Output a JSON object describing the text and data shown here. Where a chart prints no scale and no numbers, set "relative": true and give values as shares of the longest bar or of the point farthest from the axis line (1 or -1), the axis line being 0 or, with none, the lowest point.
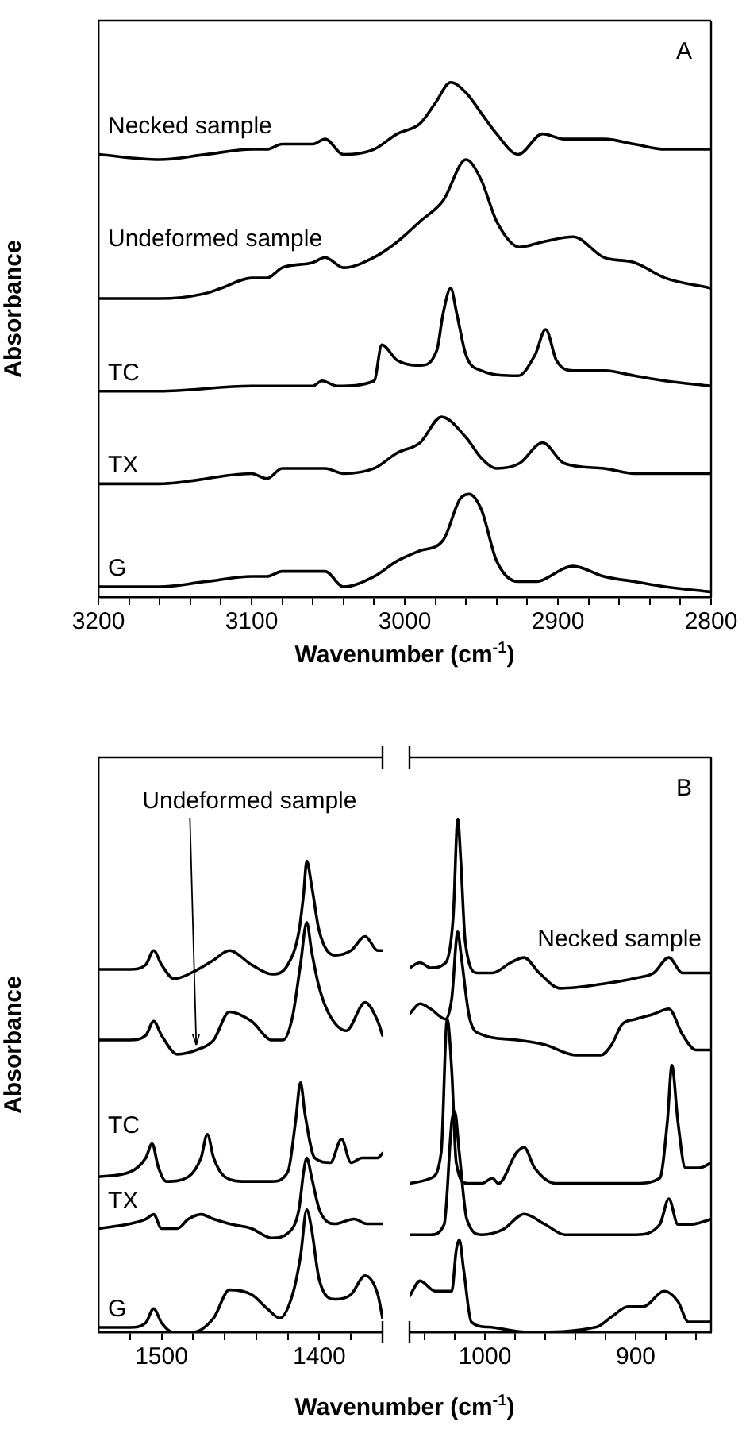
{
  "chart_data": [
    {
      "type": "line",
      "relative": true,
      "xlabel": "Wavenumber (cm$^{-1}$)",
      "ylabel": "Absorbance",
      "tick_labels": "x",
      "annotations": [
        "A"
      ],
      "xlim": [
        3200,
        2800
      ],
      "xticks": [
        3200,
        {
          "value": 3180,
          "label": null
        },
        {
          "value": 3160,
          "label": null
        },
        {
          "value": 3140,
          "label": null
        },
        {
          "value": 3120,
          "label": null
        },
        3100,
        {
          "value": 3080,
          "label": null
        },
        {
          "value": 3060,
          "label": null
        },
        {
          "value": 3040,
          "label": null
        },
        {
          "value": 3020,
          "label": null
        },
        3000,
        {
          "value": 2980,
          "label": null
        },
        {
          "value": 2960,
          "label": null
        },
        {
          "value": 2940,
          "label": null
        },
        {
          "value": 2920,
          "label": null
        },
        2900,
        {
          "value": 2880,
          "label": null
        },
        {
          "value": 2860,
          "label": null
        },
        {
          "value": 2840,
          "label": null
        },
        {
          "value": 2820,
          "label": null
        },
        2800
      ],
      "series": [
        {
          "name": "Necked sample",
          "color": "#000000",
          "x": [
            3200,
            3160,
            3130,
            3100,
            3090,
            3080,
            3060,
            3052,
            3040,
            3020,
            3005,
            2990,
            2980,
            2970,
            2960,
            2950,
            2940,
            2926,
            2910,
            2896,
            2870,
            2850,
            2830,
            2800
          ],
          "values": [
            0.86,
            0.85,
            0.86,
            0.87,
            0.87,
            0.88,
            0.88,
            0.89,
            0.86,
            0.87,
            0.9,
            0.92,
            0.96,
            1,
            0.98,
            0.94,
            0.9,
            0.86,
            0.9,
            0.89,
            0.89,
            0.88,
            0.87,
            0.87
          ]
        },
        {
          "name": "Undeformed sample",
          "color": "#000000",
          "x": [
            3200,
            3160,
            3130,
            3120,
            3100,
            3090,
            3080,
            3060,
            3052,
            3040,
            3020,
            3005,
            2990,
            2975,
            2960,
            2950,
            2940,
            2925,
            2910,
            2890,
            2870,
            2850,
            2830,
            2800
          ],
          "values": [
            0.58,
            0.58,
            0.59,
            0.6,
            0.62,
            0.62,
            0.64,
            0.65,
            0.66,
            0.64,
            0.66,
            0.69,
            0.73,
            0.77,
            0.85,
            0.81,
            0.73,
            0.68,
            0.69,
            0.7,
            0.66,
            0.65,
            0.62,
            0.6
          ]
        },
        {
          "name": "TC",
          "color": "#000000",
          "x": [
            3200,
            3160,
            3100,
            3060,
            3054,
            3044,
            3020,
            3015,
            3005,
            2990,
            2979,
            2975,
            2970,
            2966,
            2960,
            2950,
            2926,
            2915,
            2908,
            2901,
            2890,
            2870,
            2850,
            2830,
            2800
          ],
          "values": [
            0.4,
            0.4,
            0.41,
            0.41,
            0.42,
            0.41,
            0.42,
            0.49,
            0.46,
            0.45,
            0.48,
            0.55,
            0.6,
            0.55,
            0.47,
            0.44,
            0.43,
            0.47,
            0.52,
            0.46,
            0.44,
            0.44,
            0.43,
            0.42,
            0.41
          ]
        },
        {
          "name": "TX",
          "color": "#000000",
          "x": [
            3200,
            3160,
            3100,
            3090,
            3080,
            3060,
            3052,
            3040,
            3020,
            3005,
            2990,
            2976,
            2960,
            2950,
            2940,
            2925,
            2910,
            2896,
            2870,
            2850,
            2830,
            2800
          ],
          "values": [
            0.22,
            0.22,
            0.24,
            0.23,
            0.25,
            0.25,
            0.25,
            0.24,
            0.25,
            0.28,
            0.3,
            0.35,
            0.31,
            0.27,
            0.25,
            0.26,
            0.3,
            0.26,
            0.25,
            0.24,
            0.24,
            0.24
          ]
        },
        {
          "name": "G",
          "color": "#000000",
          "x": [
            3200,
            3160,
            3130,
            3100,
            3090,
            3080,
            3060,
            3052,
            3040,
            3020,
            3005,
            2990,
            2975,
            2964,
            2958,
            2950,
            2940,
            2926,
            2915,
            2890,
            2870,
            2850,
            2830,
            2800
          ],
          "values": [
            0.02,
            0.02,
            0.03,
            0.04,
            0.04,
            0.05,
            0.05,
            0.05,
            0.02,
            0.04,
            0.07,
            0.09,
            0.11,
            0.19,
            0.2,
            0.17,
            0.07,
            0.03,
            0.03,
            0.06,
            0.04,
            0.03,
            0.02,
            0.01
          ]
        }
      ]
    },
    {
      "type": "line",
      "relative": true,
      "xlabel": "Wavenumber (cm$^{-1}$)",
      "ylabel": "Absorbance",
      "tick_labels": "x",
      "annotations": [
        {
          "text": "Undeformed sample",
          "x": 1478,
          "y": 0.6
        }
      ],
      "xlim": [
        1540,
        1360
      ],
      "xticks": [
        {
          "value": 1520,
          "label": null
        },
        1500,
        {
          "value": 1480,
          "label": null
        },
        {
          "value": 1460,
          "label": null
        },
        {
          "value": 1440,
          "label": null
        },
        {
          "value": 1420,
          "label": null
        },
        1400,
        {
          "value": 1380,
          "label": null
        }
      ],
      "series": [
        {
          "color": "#000000",
          "x": [
            1540,
            1520,
            1510,
            1505,
            1500,
            1492,
            1477,
            1467,
            1457,
            1443,
            1430,
            1420,
            1413,
            1410,
            1408,
            1405,
            1400,
            1390,
            1380,
            1371,
            1363,
            1360
          ],
          "values": [
            0.77,
            0.77,
            0.78,
            0.81,
            0.78,
            0.75,
            0.77,
            0.79,
            0.81,
            0.78,
            0.76,
            0.78,
            0.85,
            0.93,
            1,
            0.95,
            0.85,
            0.8,
            0.81,
            0.84,
            0.81,
            0.81
          ]
        },
        {
          "color": "#000000",
          "x": [
            1540,
            1520,
            1510,
            1505,
            1500,
            1490,
            1477,
            1467,
            1457,
            1443,
            1430,
            1423,
            1417,
            1412,
            1408,
            1405,
            1400,
            1393,
            1383,
            1371,
            1363,
            1360
          ],
          "values": [
            0.62,
            0.62,
            0.63,
            0.66,
            0.63,
            0.59,
            0.6,
            0.62,
            0.68,
            0.66,
            0.62,
            0.62,
            0.67,
            0.78,
            0.87,
            0.81,
            0.73,
            0.67,
            0.64,
            0.7,
            0.66,
            0.63
          ]
        },
        {
          "name": "TC",
          "color": "#000000",
          "x": [
            1540,
            1520,
            1510,
            1506,
            1502,
            1497,
            1483,
            1475,
            1471,
            1467,
            1460,
            1447,
            1430,
            1420,
            1415,
            1412,
            1409,
            1403,
            1393,
            1386,
            1380,
            1373,
            1363,
            1360
          ],
          "values": [
            0.33,
            0.34,
            0.37,
            0.4,
            0.35,
            0.32,
            0.33,
            0.37,
            0.42,
            0.37,
            0.33,
            0.32,
            0.32,
            0.34,
            0.45,
            0.53,
            0.46,
            0.37,
            0.36,
            0.41,
            0.36,
            0.37,
            0.37,
            0.38
          ]
        },
        {
          "name": "TX",
          "color": "#000000",
          "x": [
            1540,
            1520,
            1510,
            1505,
            1500,
            1490,
            1483,
            1475,
            1467,
            1457,
            1443,
            1430,
            1420,
            1413,
            1410,
            1408,
            1405,
            1400,
            1390,
            1378,
            1370,
            1363,
            1360
          ],
          "values": [
            0.22,
            0.23,
            0.24,
            0.25,
            0.22,
            0.22,
            0.24,
            0.25,
            0.24,
            0.23,
            0.22,
            0.2,
            0.21,
            0.26,
            0.34,
            0.37,
            0.33,
            0.26,
            0.23,
            0.24,
            0.23,
            0.23,
            0.23
          ]
        },
        {
          "name": "G",
          "color": "#000000",
          "x": [
            1540,
            1520,
            1510,
            1505,
            1500,
            1493,
            1480,
            1467,
            1457,
            1443,
            1433,
            1425,
            1417,
            1412,
            1408,
            1405,
            1400,
            1390,
            1380,
            1371,
            1363,
            1360
          ],
          "values": [
            0.01,
            0.01,
            0.02,
            0.05,
            0.02,
            0,
            0,
            0.03,
            0.09,
            0.08,
            0.05,
            0.03,
            0.08,
            0.16,
            0.26,
            0.22,
            0.11,
            0.07,
            0.08,
            0.12,
            0.08,
            0.03
          ]
        }
      ]
    },
    {
      "type": "line",
      "relative": true,
      "tick_labels": "x",
      "annotations": [
        "B"
      ],
      "xlim": [
        1050,
        850
      ],
      "xticks": [
        {
          "value": 1040,
          "label": null
        },
        {
          "value": 1020,
          "label": null
        },
        1000,
        {
          "value": 980,
          "label": null
        },
        {
          "value": 960,
          "label": null
        },
        {
          "value": 940,
          "label": null
        },
        {
          "value": 920,
          "label": null
        },
        900,
        {
          "value": 880,
          "label": null
        },
        {
          "value": 860,
          "label": null
        }
      ],
      "series": [
        {
          "name": "Necked sample",
          "color": "#000000",
          "x": [
            1050,
            1043,
            1036,
            1026,
            1021,
            1018,
            1016,
            1013,
            1005,
            995,
            983,
            974,
            964,
            950,
            919,
            900,
            888,
            878,
            869,
            860,
            850
          ],
          "values": [
            0.71,
            0.72,
            0.71,
            0.72,
            0.81,
            1,
            0.92,
            0.76,
            0.7,
            0.7,
            0.72,
            0.73,
            0.7,
            0.67,
            0.68,
            0.69,
            0.7,
            0.73,
            0.7,
            0.7,
            0.7
          ]
        },
        {
          "color": "#000000",
          "x": [
            1050,
            1043,
            1036,
            1026,
            1022,
            1018,
            1016,
            1010,
            1002,
            981,
            960,
            940,
            923,
            916,
            909,
            900,
            888,
            878,
            869,
            860,
            850
          ],
          "values": [
            0.62,
            0.64,
            0.63,
            0.61,
            0.65,
            0.78,
            0.74,
            0.61,
            0.58,
            0.57,
            0.56,
            0.54,
            0.54,
            0.56,
            0.6,
            0.61,
            0.62,
            0.63,
            0.58,
            0.55,
            0.55
          ]
        },
        {
          "color": "#000000",
          "x": [
            1050,
            1036,
            1029,
            1025,
            1022,
            1019,
            1012,
            1002,
            995,
            991,
            979,
            974,
            967,
            953,
            919,
            900,
            884,
            879,
            876,
            872,
            867,
            858,
            850
          ],
          "values": [
            0.29,
            0.3,
            0.35,
            0.61,
            0.51,
            0.33,
            0.29,
            0.29,
            0.3,
            0.29,
            0.35,
            0.36,
            0.32,
            0.29,
            0.29,
            0.29,
            0.3,
            0.41,
            0.52,
            0.41,
            0.32,
            0.32,
            0.33
          ]
        },
        {
          "color": "#000000",
          "x": [
            1050,
            1036,
            1027,
            1022,
            1020,
            1017,
            1012,
            1002,
            988,
            974,
            960,
            947,
            919,
            900,
            884,
            878,
            872,
            864,
            850
          ],
          "values": [
            0.19,
            0.19,
            0.21,
            0.41,
            0.43,
            0.35,
            0.22,
            0.19,
            0.2,
            0.23,
            0.21,
            0.19,
            0.19,
            0.19,
            0.21,
            0.26,
            0.21,
            0.21,
            0.22
          ]
        },
        {
          "color": "#000000",
          "x": [
            1050,
            1043,
            1033,
            1022,
            1019,
            1017,
            1014,
            1009,
            998,
            971,
            926,
            916,
            905,
            895,
            881,
            872,
            865,
            850
          ],
          "values": [
            0.07,
            0.1,
            0.08,
            0.08,
            0.16,
            0.18,
            0.12,
            0.02,
            0.01,
            0,
            0.01,
            0.03,
            0.05,
            0.05,
            0.08,
            0.06,
            0.02,
            0.02
          ]
        }
      ]
    }
  ]
}
